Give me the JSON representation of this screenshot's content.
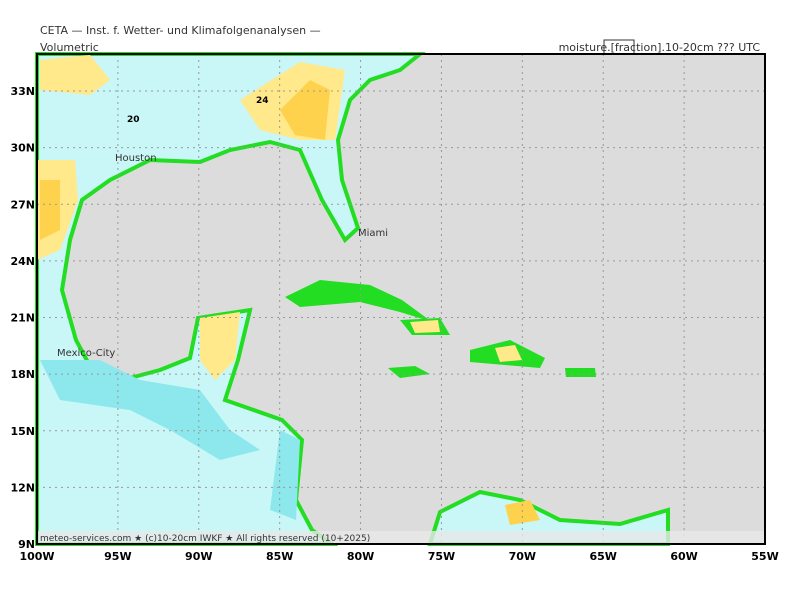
{
  "header": {
    "title": "CETA — Inst. f. Wetter- und Klimafolgenanalysen —",
    "left_label": "Volumetric",
    "right_label": "moisture.[fraction].10-20cm ??? UTC"
  },
  "map": {
    "lat_labels": [
      "9N",
      "12N",
      "15N",
      "18N",
      "21N",
      "24N",
      "27N",
      "30N",
      "33N"
    ],
    "lon_labels": [
      "100W",
      "95W",
      "90W",
      "85W",
      "80W",
      "75W",
      "70W",
      "65W",
      "60W",
      "55W"
    ],
    "cities": [
      "Houston",
      "Miami",
      "Mexico-City"
    ],
    "contour_labels": [
      "20",
      "24"
    ]
  },
  "footer": {
    "text": "meteo-services.com ★ (c)10-20cm IWKF ★ All rights reserved (10+2025)"
  }
}
